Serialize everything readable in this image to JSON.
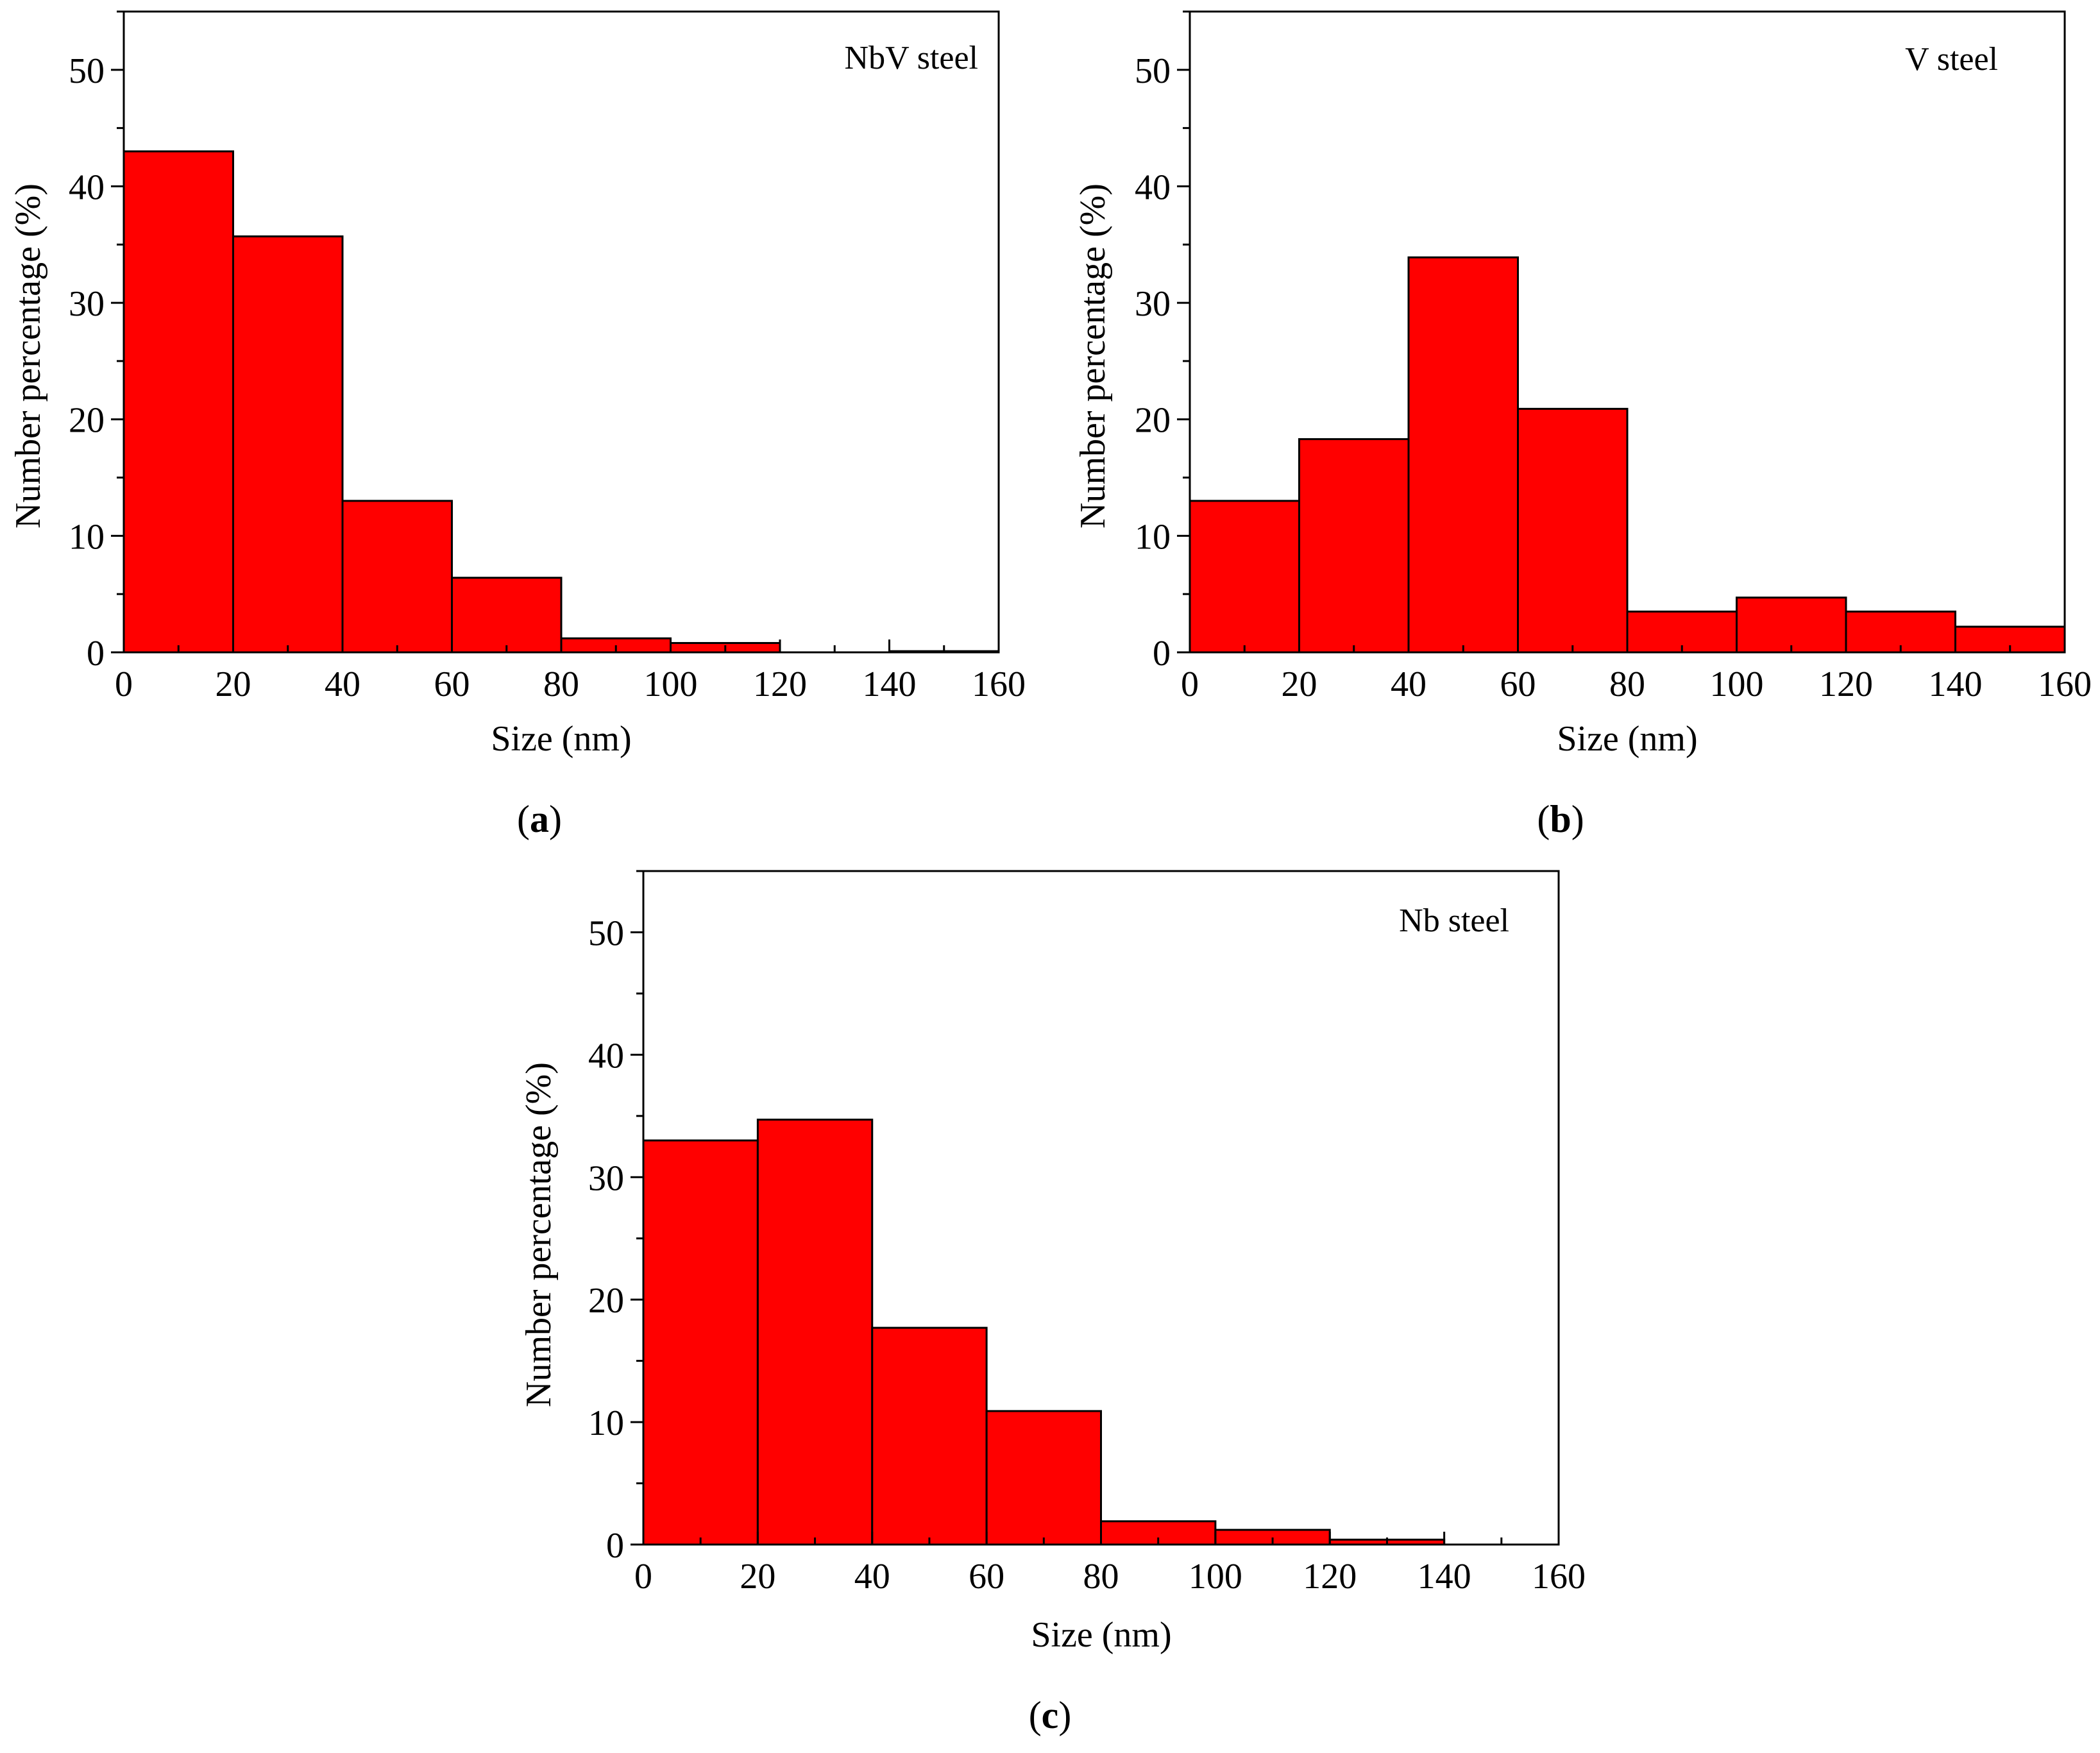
{
  "figure": {
    "bar_color": "#ff0000",
    "bar_edge_color": "#000000",
    "axis_color": "#000000",
    "background": "#ffffff"
  },
  "chart_data": [
    {
      "id": "a",
      "type": "bar",
      "panel_open": "(",
      "panel_letter": "a",
      "panel_close": ")",
      "annotation": "NbV steel",
      "xlabel": "Size (nm)",
      "ylabel": "Number percentage (%)",
      "xlim": [
        0,
        160
      ],
      "ylim": [
        0,
        55
      ],
      "xticks": [
        0,
        20,
        40,
        60,
        80,
        100,
        120,
        140,
        160
      ],
      "xtick_labels": [
        "0",
        "20",
        "40",
        "60",
        "80",
        "100",
        "120",
        "140",
        "160"
      ],
      "yticks": [
        0,
        10,
        20,
        30,
        40,
        50
      ],
      "ytick_labels": [
        "0",
        "10",
        "20",
        "30",
        "40",
        "50"
      ],
      "bins": [
        [
          0,
          20
        ],
        [
          20,
          40
        ],
        [
          40,
          60
        ],
        [
          60,
          80
        ],
        [
          80,
          100
        ],
        [
          100,
          120
        ],
        [
          120,
          140
        ],
        [
          140,
          160
        ]
      ],
      "values": [
        43.0,
        35.7,
        13.0,
        6.4,
        1.2,
        0.8,
        0.0,
        0.1
      ]
    },
    {
      "id": "b",
      "type": "bar",
      "panel_open": "(",
      "panel_letter": "b",
      "panel_close": ")",
      "annotation": "V steel",
      "xlabel": "Size (nm)",
      "ylabel": "Number percentage (%)",
      "xlim": [
        0,
        160
      ],
      "ylim": [
        0,
        55
      ],
      "xticks": [
        0,
        20,
        40,
        60,
        80,
        100,
        120,
        140,
        160
      ],
      "xtick_labels": [
        "0",
        "20",
        "40",
        "60",
        "80",
        "100",
        "120",
        "140",
        "160"
      ],
      "yticks": [
        0,
        10,
        20,
        30,
        40,
        50
      ],
      "ytick_labels": [
        "0",
        "10",
        "20",
        "30",
        "40",
        "50"
      ],
      "bins": [
        [
          0,
          20
        ],
        [
          20,
          40
        ],
        [
          40,
          60
        ],
        [
          60,
          80
        ],
        [
          80,
          100
        ],
        [
          100,
          120
        ],
        [
          120,
          140
        ],
        [
          140,
          160
        ]
      ],
      "values": [
        13.0,
        18.3,
        33.9,
        20.9,
        3.5,
        4.7,
        3.5,
        2.2
      ]
    },
    {
      "id": "c",
      "type": "bar",
      "panel_open": "(",
      "panel_letter": "c",
      "panel_close": ")",
      "annotation": "Nb steel",
      "xlabel": "Size (nm)",
      "ylabel": "Number percentage (%)",
      "xlim": [
        0,
        160
      ],
      "ylim": [
        0,
        55
      ],
      "xticks": [
        0,
        20,
        40,
        60,
        80,
        100,
        120,
        140,
        160
      ],
      "xtick_labels": [
        "0",
        "20",
        "40",
        "60",
        "80",
        "100",
        "120",
        "140",
        "160"
      ],
      "yticks": [
        0,
        10,
        20,
        30,
        40,
        50
      ],
      "ytick_labels": [
        "0",
        "10",
        "20",
        "30",
        "40",
        "50"
      ],
      "bins": [
        [
          0,
          20
        ],
        [
          20,
          40
        ],
        [
          40,
          60
        ],
        [
          60,
          80
        ],
        [
          80,
          100
        ],
        [
          100,
          120
        ],
        [
          120,
          140
        ]
      ],
      "values": [
        33.0,
        34.7,
        17.7,
        10.9,
        1.9,
        1.2,
        0.4
      ]
    }
  ]
}
